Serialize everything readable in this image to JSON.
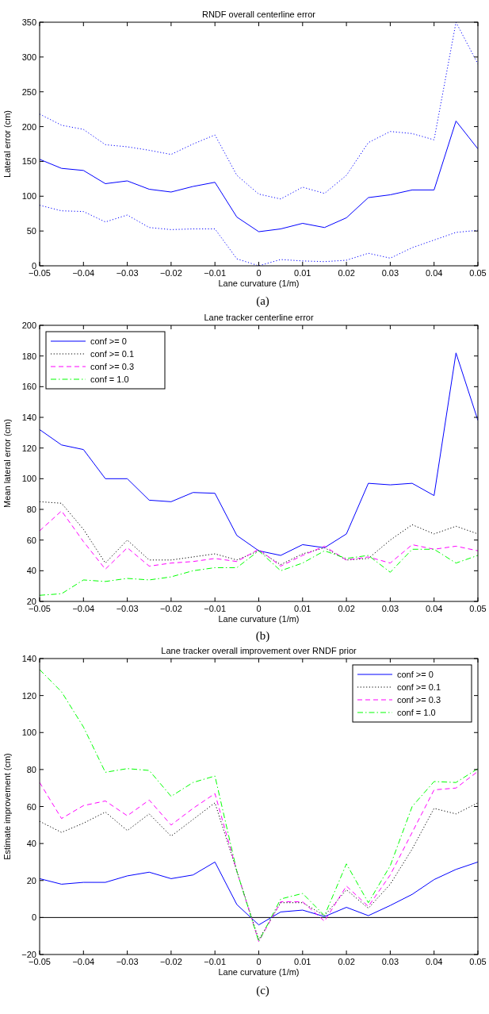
{
  "chart_data": [
    {
      "type": "line",
      "title": "RNDF overall centerline error",
      "xlabel": "Lane curvature (1/m)",
      "ylabel": "Lateral error (cm)",
      "annotations": [
        "(a)"
      ],
      "x": [
        -0.05,
        -0.045,
        -0.04,
        -0.035,
        -0.03,
        -0.025,
        -0.02,
        -0.015,
        -0.01,
        -0.005,
        0,
        0.005,
        0.01,
        0.015,
        0.02,
        0.025,
        0.03,
        0.035,
        0.04,
        0.045,
        0.05
      ],
      "xlim": [
        -0.05,
        0.05
      ],
      "xticks": [
        {
          "value": -0.05,
          "label": "−0.05"
        },
        {
          "value": -0.04,
          "label": "−0.04"
        },
        {
          "value": -0.03,
          "label": "−0.03"
        },
        {
          "value": -0.02,
          "label": "−0.02"
        },
        {
          "value": -0.01,
          "label": "−0.01"
        },
        0,
        0.01,
        0.02,
        0.03,
        0.04,
        0.05
      ],
      "ylim": [
        0,
        350
      ],
      "yticks": [
        0,
        50,
        100,
        150,
        200,
        250,
        300,
        350
      ],
      "grid": false,
      "legend": false,
      "series": [
        {
          "color": "#0000ff",
          "line_style": "solid",
          "values": [
            153,
            140,
            137,
            118,
            122,
            110,
            106,
            114,
            120,
            70,
            49,
            53,
            61,
            55,
            69,
            98,
            102,
            109,
            109,
            208,
            168
          ]
        },
        {
          "color": "#0000ff",
          "line_style": "dotted",
          "values": [
            218,
            202,
            196,
            174,
            171,
            166,
            160,
            175,
            188,
            130,
            103,
            96,
            113,
            104,
            130,
            177,
            193,
            190,
            181,
            350,
            290
          ]
        },
        {
          "color": "#0000ff",
          "line_style": "dotted",
          "values": [
            87,
            79,
            78,
            63,
            73,
            55,
            52,
            53,
            53,
            10,
            0,
            9,
            7,
            6,
            8,
            18,
            11,
            26,
            37,
            48,
            51
          ]
        }
      ]
    },
    {
      "type": "line",
      "title": "Lane tracker centerline error",
      "xlabel": "Lane curvature (1/m)",
      "ylabel": "Mean lateral error (cm)",
      "annotations": [
        "(b)"
      ],
      "x": [
        -0.05,
        -0.045,
        -0.04,
        -0.035,
        -0.03,
        -0.025,
        -0.02,
        -0.015,
        -0.01,
        -0.005,
        0,
        0.005,
        0.01,
        0.015,
        0.02,
        0.025,
        0.03,
        0.035,
        0.04,
        0.045,
        0.05
      ],
      "xlim": [
        -0.05,
        0.05
      ],
      "xticks": [
        {
          "value": -0.05,
          "label": "−0.05"
        },
        {
          "value": -0.04,
          "label": "−0.04"
        },
        {
          "value": -0.03,
          "label": "−0.03"
        },
        {
          "value": -0.02,
          "label": "−0.02"
        },
        {
          "value": -0.01,
          "label": "−0.01"
        },
        0,
        0.01,
        0.02,
        0.03,
        0.04,
        0.05
      ],
      "ylim": [
        20,
        200
      ],
      "yticks": [
        20,
        40,
        60,
        80,
        100,
        120,
        140,
        160,
        180,
        200
      ],
      "grid": false,
      "legend": "top left",
      "series": [
        {
          "name": "conf >= 0",
          "color": "#0000ff",
          "line_style": "solid",
          "values": [
            132,
            122,
            119,
            100,
            100,
            86,
            85,
            91,
            90.5,
            63,
            53,
            50,
            57,
            55,
            64,
            97,
            96,
            97,
            89,
            182,
            138
          ]
        },
        {
          "name": "conf >= 0.1",
          "color": "#000000",
          "line_style": "dotted",
          "values": [
            85,
            84,
            67,
            45,
            60,
            47,
            47,
            49,
            51,
            47,
            53,
            44,
            51,
            55,
            47,
            48,
            60,
            70,
            64,
            69,
            64
          ]
        },
        {
          "name": "conf >= 0.3",
          "color": "#ff00ff",
          "line_style": "dashed",
          "values": [
            66,
            79,
            59,
            41,
            55,
            43,
            45,
            46,
            48,
            46,
            54,
            43,
            50,
            56,
            47,
            49,
            45,
            57,
            54,
            56,
            53
          ]
        },
        {
          "name": "conf = 1.0",
          "color": "#00ff00",
          "line_style": "dashdot",
          "values": [
            24,
            25,
            34,
            33,
            35,
            34,
            36,
            40,
            42,
            42,
            53,
            40,
            45,
            53,
            48,
            50,
            39,
            54,
            54,
            45,
            50
          ]
        }
      ]
    },
    {
      "type": "line",
      "title": "Lane tracker overall improvement over RNDF prior",
      "xlabel": "Lane curvature (1/m)",
      "ylabel": "Estimate improvement (cm)",
      "annotations": [
        "(c)"
      ],
      "x": [
        -0.05,
        -0.045,
        -0.04,
        -0.035,
        -0.03,
        -0.025,
        -0.02,
        -0.015,
        -0.01,
        -0.005,
        0,
        0.005,
        0.01,
        0.015,
        0.02,
        0.025,
        0.03,
        0.035,
        0.04,
        0.045,
        0.05
      ],
      "xlim": [
        -0.05,
        0.05
      ],
      "xticks": [
        {
          "value": -0.05,
          "label": "−0.05"
        },
        {
          "value": -0.04,
          "label": "−0.04"
        },
        {
          "value": -0.03,
          "label": "−0.03"
        },
        {
          "value": -0.02,
          "label": "−0.02"
        },
        {
          "value": -0.01,
          "label": "−0.01"
        },
        0,
        0.01,
        0.02,
        0.03,
        0.04,
        0.05
      ],
      "ylim": [
        -20,
        140
      ],
      "yticks": [
        {
          "value": -20,
          "label": "−20"
        },
        0,
        20,
        40,
        60,
        80,
        100,
        120,
        140
      ],
      "grid": false,
      "legend": "top right",
      "ref_lines": [
        {
          "axis": "y",
          "value": 0,
          "color": "#000000"
        }
      ],
      "series": [
        {
          "name": "conf >= 0",
          "color": "#0000ff",
          "line_style": "solid",
          "values": [
            21,
            18,
            19,
            19,
            22.5,
            24.5,
            21,
            23,
            30,
            7,
            -4,
            3,
            4,
            0.5,
            5.5,
            1,
            6.5,
            12.5,
            20.5,
            26,
            30
          ]
        },
        {
          "name": "conf >= 0.1",
          "color": "#000000",
          "line_style": "dotted",
          "values": [
            52,
            46,
            51,
            57,
            47,
            56,
            44,
            53,
            62,
            25,
            -12,
            8,
            8,
            1,
            15,
            5,
            18,
            37,
            59,
            56,
            62
          ]
        },
        {
          "name": "conf >= 0.3",
          "color": "#ff00ff",
          "line_style": "dashed",
          "values": [
            73,
            53.5,
            60.5,
            63,
            55,
            63.5,
            50,
            59,
            67,
            25,
            -13,
            8.5,
            8.5,
            -2,
            17,
            6,
            23,
            46,
            69,
            70,
            79
          ]
        },
        {
          "name": "conf = 1.0",
          "color": "#00ff00",
          "line_style": "dashdot",
          "values": [
            134,
            122,
            103,
            78.5,
            80.5,
            79.5,
            65.5,
            73,
            76.5,
            25,
            -13,
            10,
            13,
            1,
            29,
            8,
            28,
            60,
            73.5,
            73,
            80.5
          ]
        }
      ]
    }
  ]
}
